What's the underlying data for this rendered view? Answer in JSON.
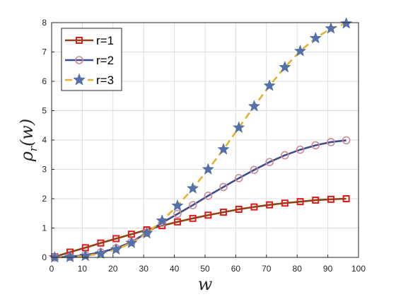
{
  "chart_data": {
    "type": "line",
    "xlabel": "w",
    "ylabel": "ρ_r(w)",
    "xlim": [
      0,
      100
    ],
    "ylim": [
      0,
      8
    ],
    "xticks": [
      0,
      10,
      20,
      30,
      40,
      50,
      60,
      70,
      80,
      90,
      100
    ],
    "yticks": [
      0,
      1,
      2,
      3,
      4,
      5,
      6,
      7,
      8
    ],
    "grid": true,
    "legend_position": "top-left",
    "x": [
      1,
      6,
      11,
      16,
      21,
      26,
      31,
      36,
      41,
      46,
      51,
      56,
      61,
      66,
      71,
      76,
      81,
      86,
      91,
      96
    ],
    "series": [
      {
        "name": "r=1",
        "line_color": "#8B4513",
        "marker": "square",
        "marker_color": "#E0191B",
        "line_style": "solid",
        "values": [
          0.02,
          0.18,
          0.33,
          0.49,
          0.64,
          0.79,
          0.94,
          1.08,
          1.21,
          1.33,
          1.44,
          1.54,
          1.64,
          1.72,
          1.79,
          1.85,
          1.9,
          1.95,
          1.98,
          2.0
        ]
      },
      {
        "name": "r=2",
        "line_color": "#3F4C8C",
        "marker": "circle",
        "marker_color": "#C98A98",
        "line_style": "solid",
        "values": [
          0.0,
          0.02,
          0.08,
          0.17,
          0.31,
          0.52,
          0.84,
          1.18,
          1.48,
          1.78,
          2.1,
          2.4,
          2.7,
          2.98,
          3.25,
          3.48,
          3.67,
          3.82,
          3.93,
          3.99
        ]
      },
      {
        "name": "r=3",
        "line_color": "#E6B030",
        "marker": "star",
        "marker_color": "#5470A8",
        "line_style": "dashed",
        "values": [
          0.0,
          0.01,
          0.05,
          0.13,
          0.27,
          0.49,
          0.82,
          1.25,
          1.76,
          2.35,
          3.0,
          3.68,
          4.42,
          5.15,
          5.85,
          6.48,
          7.03,
          7.47,
          7.8,
          7.97
        ]
      }
    ]
  }
}
